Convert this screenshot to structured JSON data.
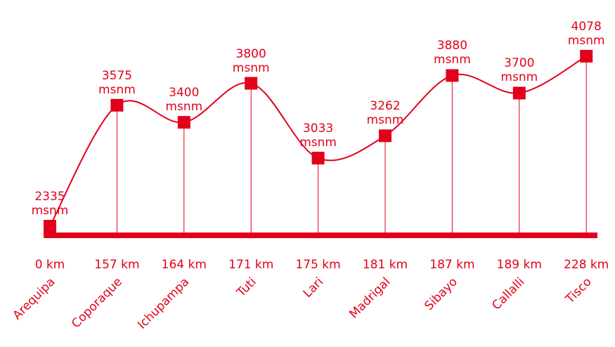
{
  "chart_data": {
    "type": "line",
    "color": "#e2001a",
    "categories": [
      "Arequipa",
      "Coporaque",
      "Ichupampa",
      "Tuti",
      "Lari",
      "Madrigal",
      "Sibayo",
      "Callalli",
      "Tisco"
    ],
    "distances": [
      "0 km",
      "157 km",
      "164 km",
      "171 km",
      "175 km",
      "181 km",
      "187 km",
      "189 km",
      "228 km"
    ],
    "values": [
      2335,
      3575,
      3400,
      3800,
      3033,
      3262,
      3880,
      3700,
      4078
    ],
    "value_labels": [
      "2335\nmsnm",
      "3575\nmsnm",
      "3400\nmsnm",
      "3800\nmsnm",
      "3033\nmsnm",
      "3262\nmsnm",
      "3880\nmsnm",
      "3700\nmsnm",
      "4078\nmsnm"
    ]
  }
}
